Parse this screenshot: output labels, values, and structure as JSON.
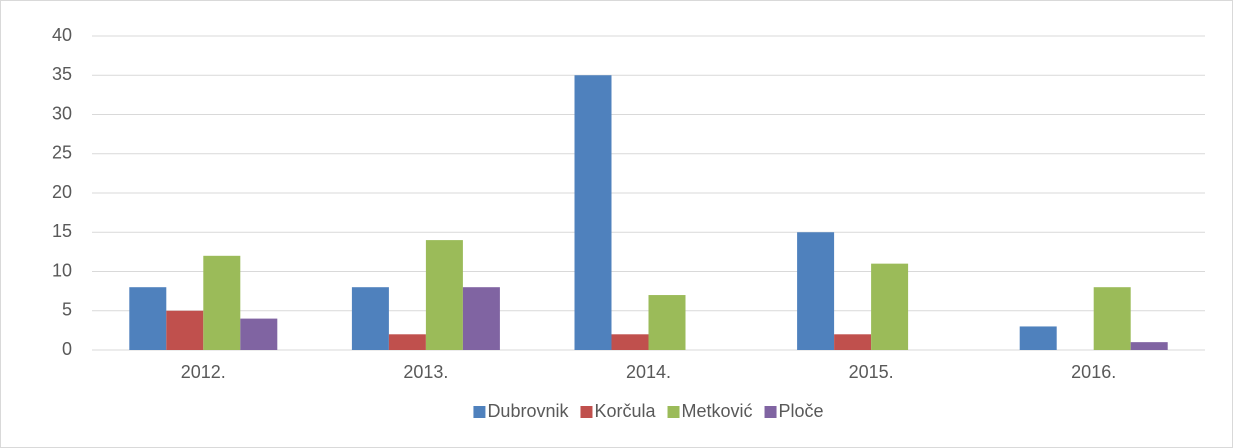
{
  "chart_data": {
    "type": "bar",
    "categories": [
      "2012.",
      "2013.",
      "2014.",
      "2015.",
      "2016."
    ],
    "series": [
      {
        "name": "Dubrovnik",
        "color": "#4f81bd",
        "values": [
          8,
          8,
          35,
          15,
          3
        ]
      },
      {
        "name": "Korčula",
        "color": "#c0504d",
        "values": [
          5,
          2,
          2,
          2,
          0
        ]
      },
      {
        "name": "Metković",
        "color": "#9bbb59",
        "values": [
          12,
          14,
          7,
          11,
          8
        ]
      },
      {
        "name": "Ploče",
        "color": "#8064a2",
        "values": [
          4,
          8,
          0,
          0,
          1
        ]
      }
    ],
    "ylim": [
      0,
      40
    ],
    "yticks": [
      0,
      5,
      10,
      15,
      20,
      25,
      30,
      35,
      40
    ],
    "grid": true,
    "legend": "bottom"
  }
}
